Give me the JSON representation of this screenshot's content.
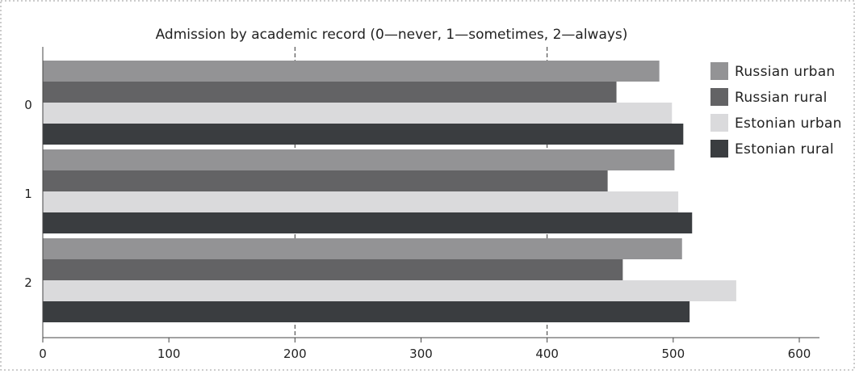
{
  "chart_data": {
    "type": "bar",
    "orientation": "horizontal",
    "title": "Admission by academic record (0—never, 1—sometimes, 2—always)",
    "xlabel": "",
    "ylabel": "",
    "categories": [
      "0",
      "1",
      "2"
    ],
    "xlim": [
      0,
      600
    ],
    "xticks": [
      "0",
      "100",
      "200",
      "300",
      "400",
      "500",
      "600"
    ],
    "gridlines": [
      200,
      400
    ],
    "legend_position": "right",
    "series": [
      {
        "name": "Russian urban",
        "color": "#939395",
        "values": [
          489,
          501,
          507
        ]
      },
      {
        "name": "Russian rural",
        "color": "#636365",
        "values": [
          455,
          448,
          460
        ]
      },
      {
        "name": "Estonian urban",
        "color": "#dadadc",
        "values": [
          499,
          504,
          550
        ]
      },
      {
        "name": "Estonian rural",
        "color": "#3a3d40",
        "values": [
          508,
          515,
          513
        ]
      }
    ]
  }
}
